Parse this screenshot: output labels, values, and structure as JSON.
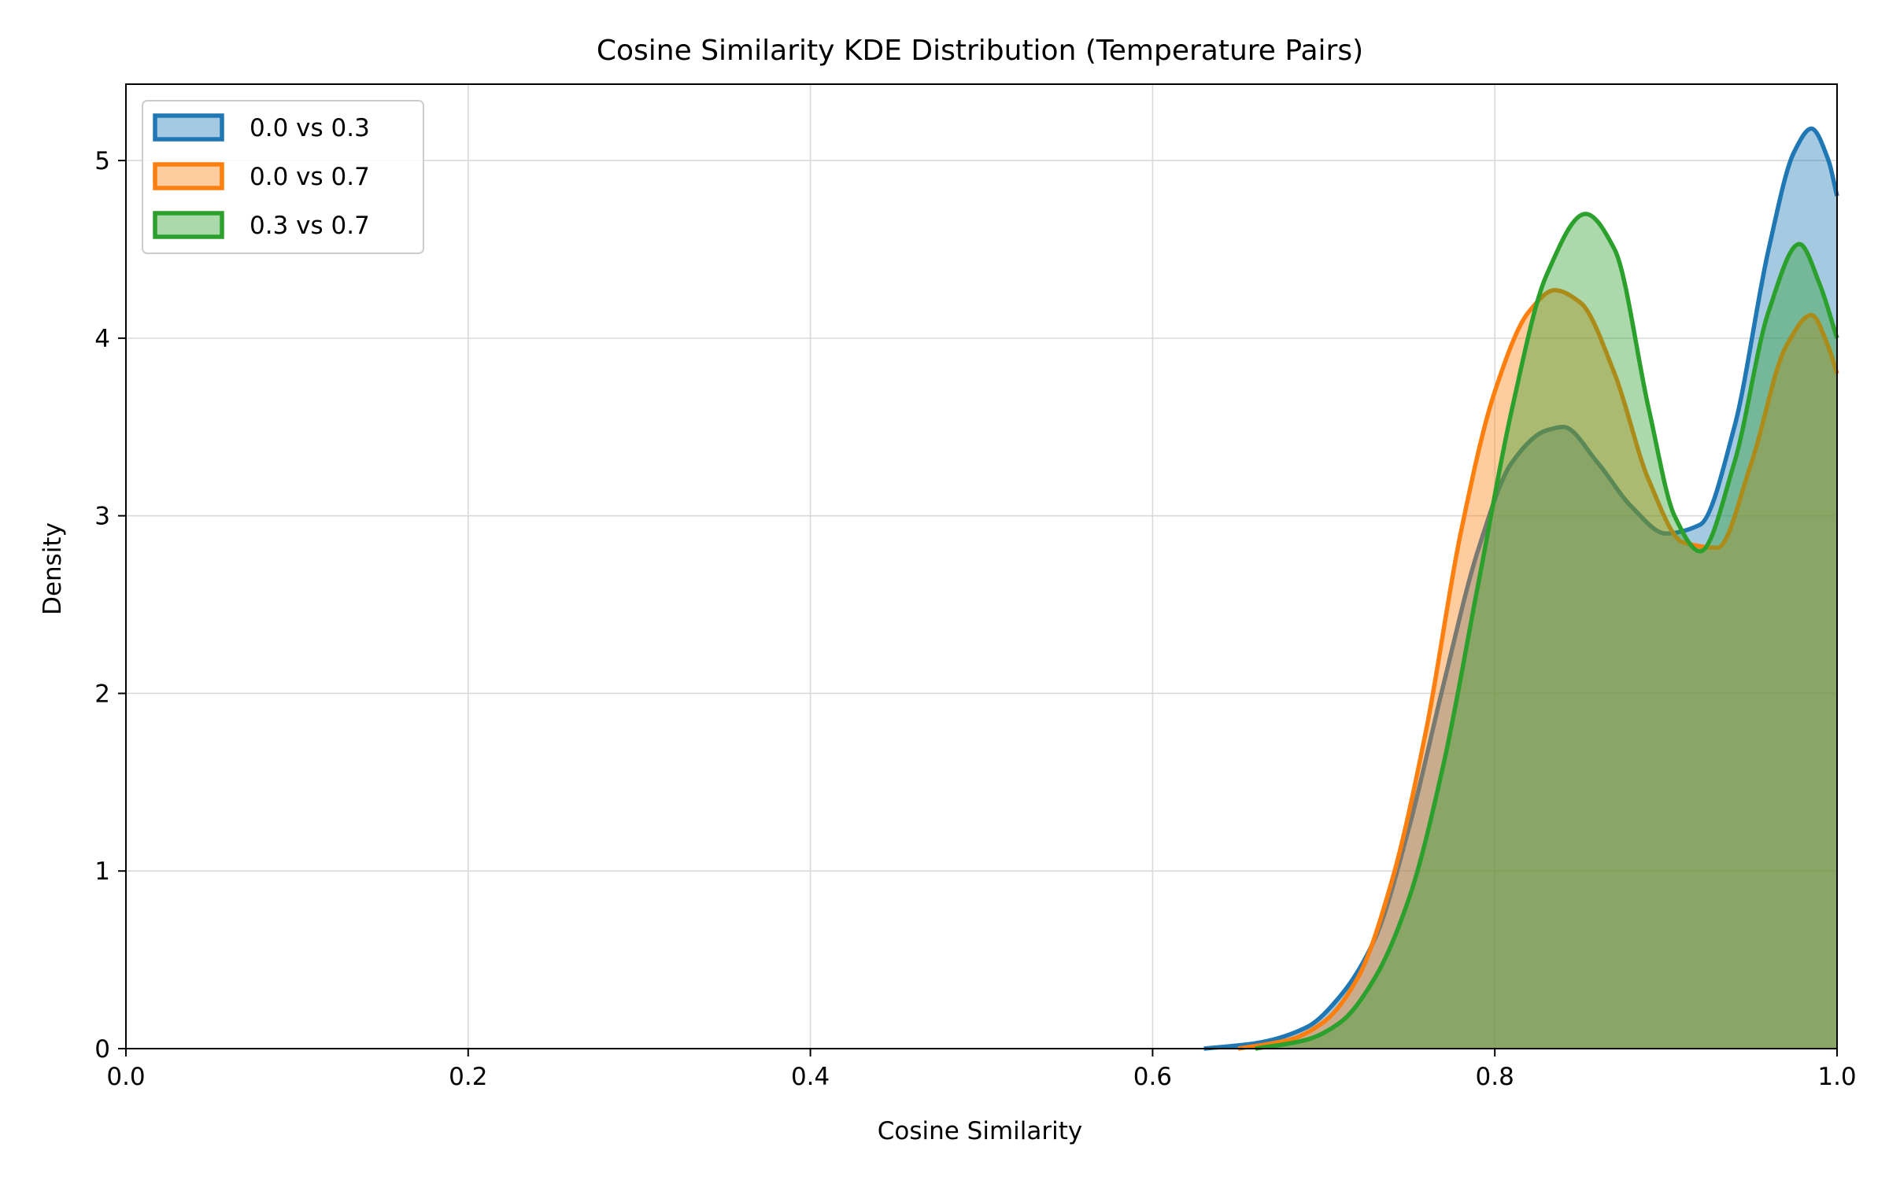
{
  "chart_data": {
    "type": "area",
    "title": "Cosine Similarity KDE Distribution (Temperature Pairs)",
    "xlabel": "Cosine Similarity",
    "ylabel": "Density",
    "xlim": [
      0.0,
      1.0
    ],
    "ylim": [
      0,
      5.43
    ],
    "xticks": [
      0.0,
      0.2,
      0.4,
      0.6,
      0.8,
      1.0
    ],
    "xtick_labels": [
      "0.0",
      "0.2",
      "0.4",
      "0.6",
      "0.8",
      "1.0"
    ],
    "yticks": [
      0,
      1,
      2,
      3,
      4,
      5
    ],
    "ytick_labels": [
      "0",
      "1",
      "2",
      "3",
      "4",
      "5"
    ],
    "grid": true,
    "legend_position": "top-left",
    "series": [
      {
        "name": "0.0 vs 0.3",
        "color": "#1f77b4",
        "x": [
          0.63,
          0.66,
          0.69,
          0.71,
          0.73,
          0.75,
          0.77,
          0.79,
          0.81,
          0.83,
          0.84,
          0.86,
          0.88,
          0.9,
          0.92,
          0.94,
          0.96,
          0.975,
          0.985,
          0.995,
          1.0
        ],
        "y": [
          0.0,
          0.03,
          0.12,
          0.3,
          0.62,
          1.25,
          2.05,
          2.8,
          3.3,
          3.48,
          3.5,
          3.3,
          3.05,
          2.9,
          2.95,
          3.5,
          4.5,
          5.05,
          5.18,
          5.0,
          4.8
        ]
      },
      {
        "name": "0.0 vs 0.7",
        "color": "#ff7f0e",
        "x": [
          0.65,
          0.68,
          0.7,
          0.72,
          0.74,
          0.76,
          0.78,
          0.8,
          0.82,
          0.835,
          0.85,
          0.87,
          0.89,
          0.91,
          0.93,
          0.95,
          0.97,
          0.985,
          0.995,
          1.0
        ],
        "y": [
          0.0,
          0.05,
          0.15,
          0.4,
          0.95,
          1.8,
          2.9,
          3.7,
          4.15,
          4.27,
          4.2,
          3.8,
          3.2,
          2.85,
          2.82,
          3.3,
          3.95,
          4.13,
          3.95,
          3.8
        ]
      },
      {
        "name": "0.3 vs 0.7",
        "color": "#2ca02c",
        "x": [
          0.66,
          0.69,
          0.71,
          0.73,
          0.75,
          0.77,
          0.79,
          0.81,
          0.83,
          0.853,
          0.87,
          0.89,
          0.905,
          0.92,
          0.94,
          0.96,
          0.978,
          0.99,
          1.0
        ],
        "y": [
          0.0,
          0.05,
          0.15,
          0.4,
          0.85,
          1.6,
          2.6,
          3.6,
          4.35,
          4.7,
          4.5,
          3.6,
          3.0,
          2.8,
          3.3,
          4.15,
          4.53,
          4.3,
          4.0
        ]
      }
    ]
  }
}
